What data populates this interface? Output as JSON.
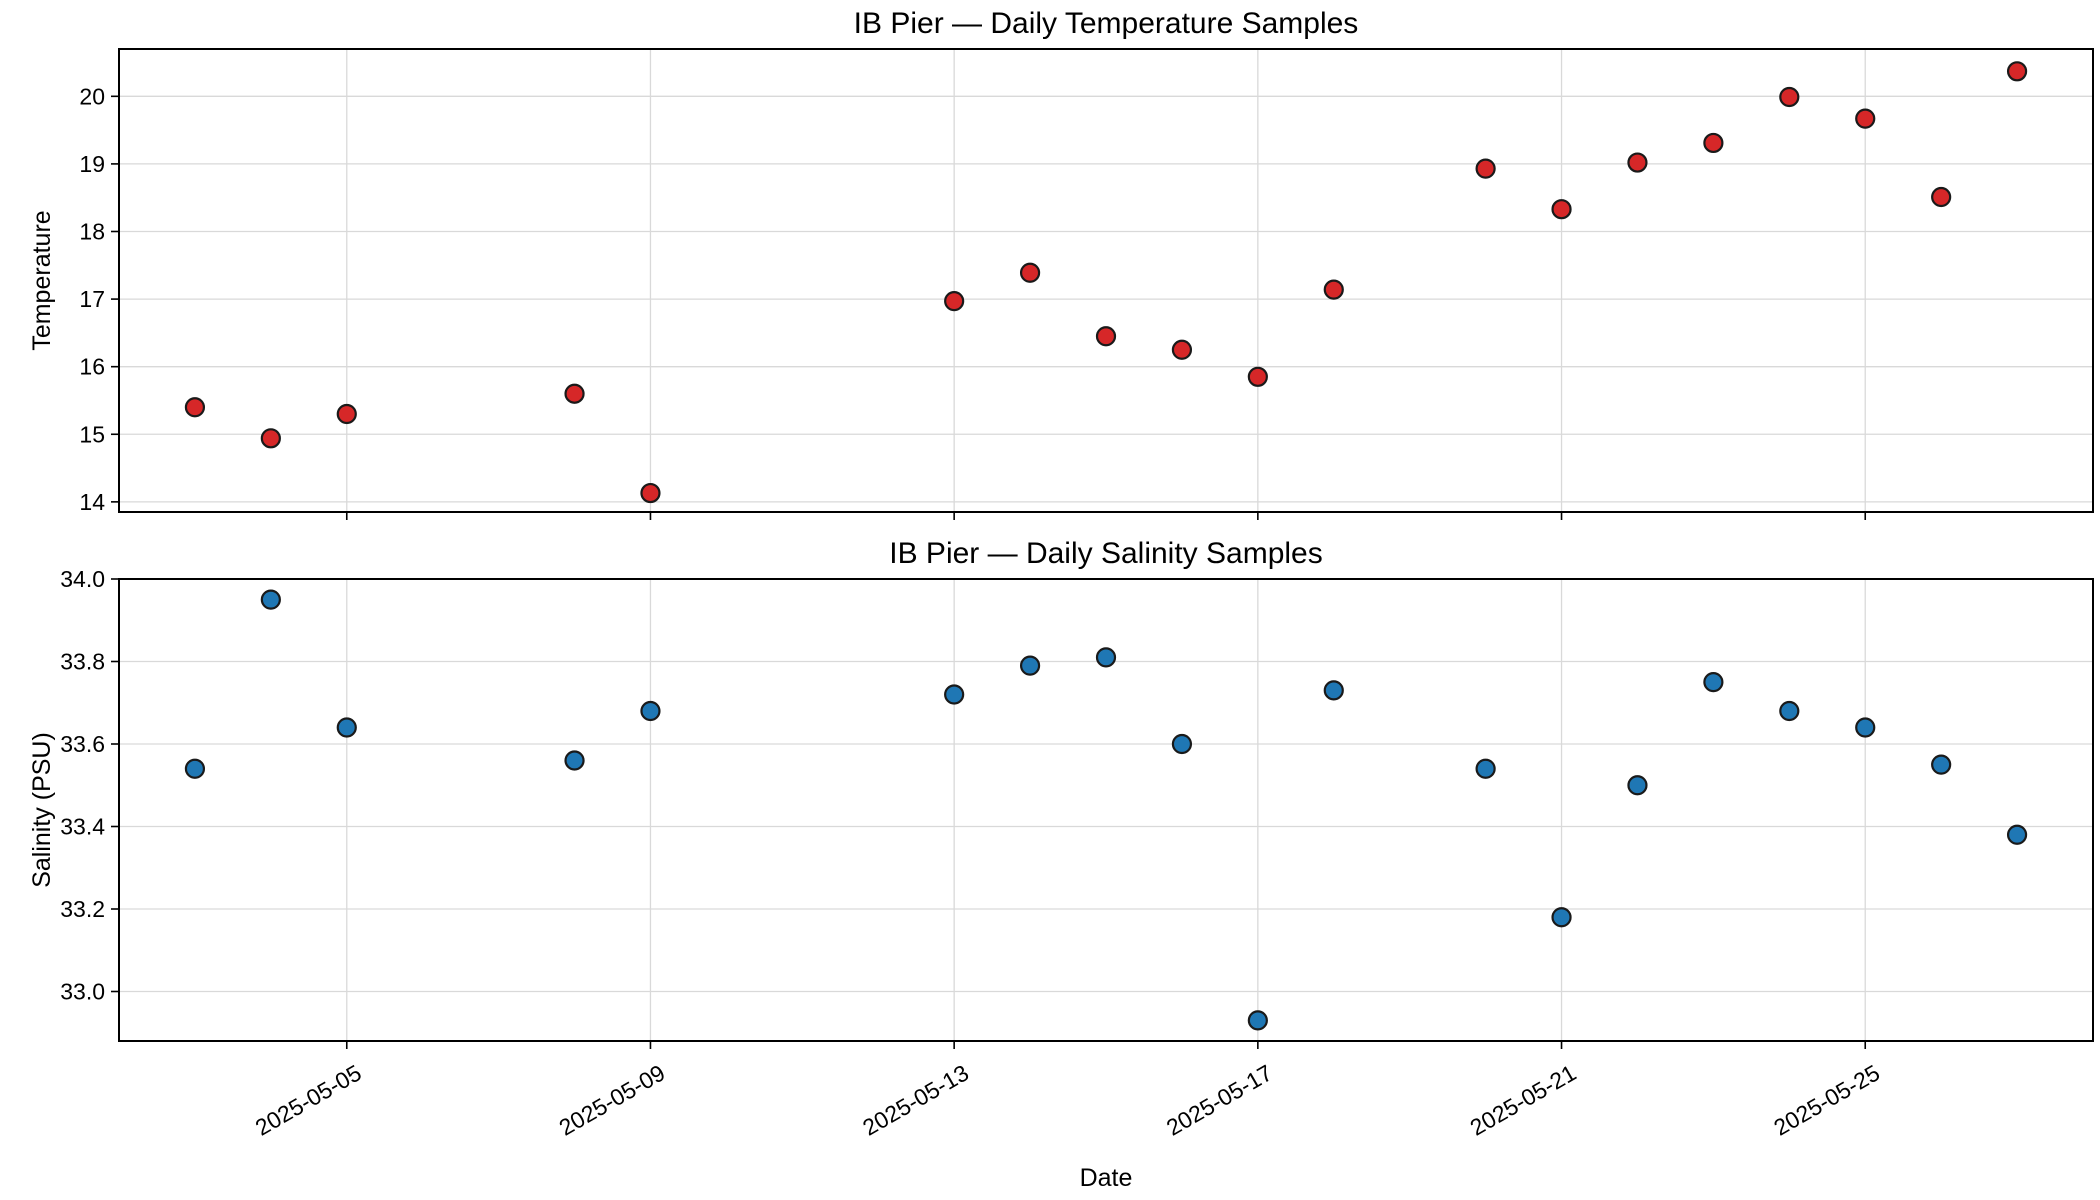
{
  "chart_data": [
    {
      "type": "scatter",
      "title": "IB Pier — Daily Temperature Samples",
      "ylabel": "Temperature",
      "xlabel": "",
      "color": "#d62728",
      "grid": true,
      "xlim": [
        "2025-05-02",
        "2025-05-28"
      ],
      "ylim": [
        13.85,
        20.7
      ],
      "yticks": [
        14,
        15,
        16,
        17,
        18,
        19,
        20
      ],
      "xticks": [
        "2025-05-05",
        "2025-05-09",
        "2025-05-13",
        "2025-05-17",
        "2025-05-21",
        "2025-05-25"
      ],
      "x": [
        "2025-05-03",
        "2025-05-04",
        "2025-05-05",
        "2025-05-08",
        "2025-05-09",
        "2025-05-13",
        "2025-05-14",
        "2025-05-15",
        "2025-05-16",
        "2025-05-17",
        "2025-05-18",
        "2025-05-20",
        "2025-05-21",
        "2025-05-22",
        "2025-05-23",
        "2025-05-24",
        "2025-05-25",
        "2025-05-26",
        "2025-05-27"
      ],
      "y": [
        15.4,
        14.94,
        15.3,
        15.6,
        14.13,
        16.97,
        17.39,
        16.45,
        16.25,
        15.85,
        17.14,
        18.93,
        18.33,
        19.02,
        19.31,
        19.99,
        19.67,
        18.51,
        20.37
      ]
    },
    {
      "type": "scatter",
      "title": "IB Pier — Daily Salinity Samples",
      "ylabel": "Salinity (PSU)",
      "xlabel": "Date",
      "color": "#1f77b4",
      "grid": true,
      "xlim": [
        "2025-05-02",
        "2025-05-28"
      ],
      "ylim": [
        32.88,
        34.0
      ],
      "yticks": [
        33.0,
        33.2,
        33.4,
        33.6,
        33.8,
        34.0
      ],
      "ytick_labels": [
        "33.0",
        "33.2",
        "33.4",
        "33.6",
        "33.8",
        "34.0"
      ],
      "xticks": [
        "2025-05-05",
        "2025-05-09",
        "2025-05-13",
        "2025-05-17",
        "2025-05-21",
        "2025-05-25"
      ],
      "x": [
        "2025-05-03",
        "2025-05-04",
        "2025-05-05",
        "2025-05-08",
        "2025-05-09",
        "2025-05-13",
        "2025-05-14",
        "2025-05-15",
        "2025-05-16",
        "2025-05-17",
        "2025-05-18",
        "2025-05-20",
        "2025-05-21",
        "2025-05-22",
        "2025-05-23",
        "2025-05-24",
        "2025-05-25",
        "2025-05-26",
        "2025-05-27"
      ],
      "y": [
        33.54,
        33.95,
        33.64,
        33.56,
        33.68,
        33.72,
        33.79,
        33.81,
        33.6,
        32.93,
        33.73,
        33.54,
        33.18,
        33.5,
        33.75,
        33.68,
        33.64,
        33.55,
        33.38
      ]
    }
  ]
}
